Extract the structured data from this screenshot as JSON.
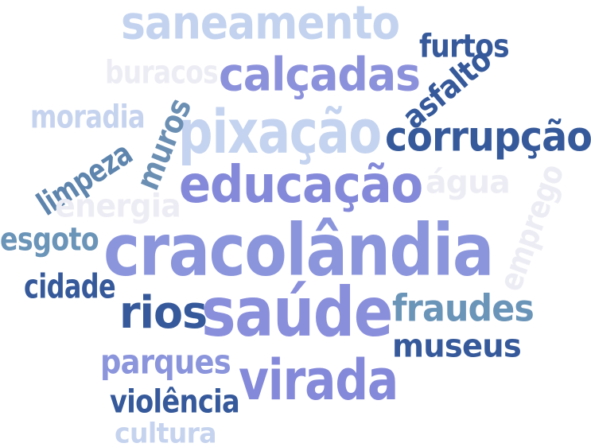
{
  "words": [
    {
      "id": "saneamento",
      "text": "saneamento",
      "color": "#c3d3ef"
    },
    {
      "id": "calcadas",
      "text": "calçadas",
      "color": "#8c91dc"
    },
    {
      "id": "furtos",
      "text": "furtos",
      "color": "#35599a"
    },
    {
      "id": "asfalto",
      "text": "asfalto",
      "color": "#35599a"
    },
    {
      "id": "buracos",
      "text": "buracos",
      "color": "#ececf4"
    },
    {
      "id": "moradia",
      "text": "moradia",
      "color": "#c6d3ef"
    },
    {
      "id": "pixacao",
      "text": "pixação",
      "color": "#c4d3ef"
    },
    {
      "id": "muros",
      "text": "muros",
      "color": "#6b8fb3"
    },
    {
      "id": "limpeza",
      "text": "limpeza",
      "color": "#5e85ad"
    },
    {
      "id": "corrupcao",
      "text": "corrupção",
      "color": "#35599a"
    },
    {
      "id": "educacao",
      "text": "educação",
      "color": "#8489d9"
    },
    {
      "id": "agua",
      "text": "água",
      "color": "#ececf4"
    },
    {
      "id": "emprego",
      "text": "emprego",
      "color": "#ececf4"
    },
    {
      "id": "energia",
      "text": "energia",
      "color": "#ececf4"
    },
    {
      "id": "esgoto",
      "text": "esgoto",
      "color": "#6a94b8"
    },
    {
      "id": "cracolandia",
      "text": "cracolândia",
      "color": "#8b95dc"
    },
    {
      "id": "cidade",
      "text": "cidade",
      "color": "#35599a"
    },
    {
      "id": "rios",
      "text": "rios",
      "color": "#35599a"
    },
    {
      "id": "saude",
      "text": "saúde",
      "color": "#8a8fdc"
    },
    {
      "id": "fraudes",
      "text": "fraudes",
      "color": "#6a94b8"
    },
    {
      "id": "museus",
      "text": "museus",
      "color": "#35599a"
    },
    {
      "id": "parques",
      "text": "parques",
      "color": "#8b95dc"
    },
    {
      "id": "virada",
      "text": "virada",
      "color": "#8489d9"
    },
    {
      "id": "violencia",
      "text": "violência",
      "color": "#35599a"
    },
    {
      "id": "cultura",
      "text": "cultura",
      "color": "#c6d3ef"
    }
  ]
}
